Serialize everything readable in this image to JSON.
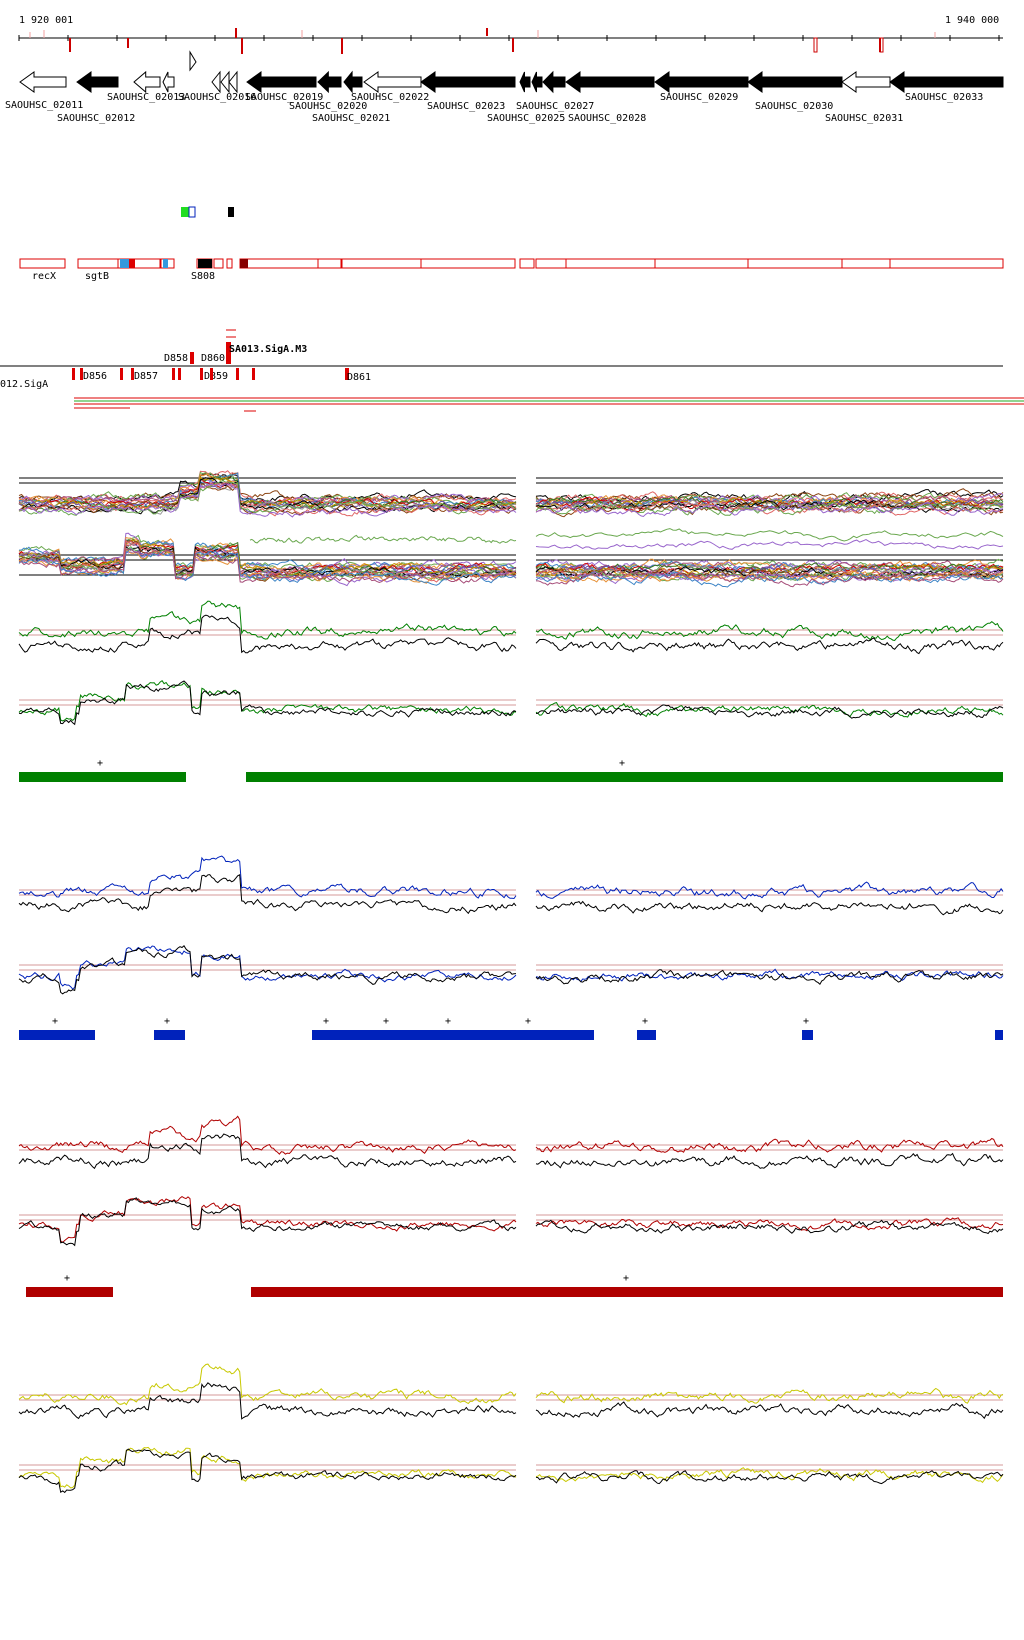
{
  "coordinate_axis": {
    "start_label": "1 920 001",
    "end_label": "1 940 000"
  },
  "genes": [
    {
      "name": "SAOUHSC_02011",
      "strand": "-",
      "style": "open"
    },
    {
      "name": "SAOUHSC_02012",
      "strand": "-",
      "style": "filled"
    },
    {
      "name": "SAOUHSC_02013",
      "strand": "-",
      "style": "open"
    },
    {
      "name": "SAOUHSC_02016",
      "strand": "-",
      "style": "open"
    },
    {
      "name": "SAOUHSC_02019",
      "strand": "-",
      "style": "filled"
    },
    {
      "name": "SAOUHSC_02020",
      "strand": "-",
      "style": "filled"
    },
    {
      "name": "SAOUHSC_02021",
      "strand": "-",
      "style": "filled"
    },
    {
      "name": "SAOUHSC_02022",
      "strand": "-",
      "style": "open"
    },
    {
      "name": "SAOUHSC_02023",
      "strand": "-",
      "style": "filled"
    },
    {
      "name": "SAOUHSC_02025",
      "strand": "-",
      "style": "filled"
    },
    {
      "name": "SAOUHSC_02027",
      "strand": "-",
      "style": "filled"
    },
    {
      "name": "SAOUHSC_02028",
      "strand": "-",
      "style": "filled"
    },
    {
      "name": "SAOUHSC_02029",
      "strand": "-",
      "style": "filled"
    },
    {
      "name": "SAOUHSC_02030",
      "strand": "-",
      "style": "filled"
    },
    {
      "name": "SAOUHSC_02031",
      "strand": "-",
      "style": "open"
    },
    {
      "name": "SAOUHSC_02033",
      "strand": "-",
      "style": "filled"
    }
  ],
  "gene_labels": [
    "recX",
    "sgtB",
    "S808"
  ],
  "feature_labels": [
    "D858",
    "D860",
    "D861",
    "D856",
    "D857",
    "D859"
  ],
  "sigma_labels": {
    "upper": "SA013.SigA.M3",
    "lower": "012.SigA"
  },
  "tracks": [
    {
      "name": "green-expression",
      "color": "#008000",
      "segment_marker": "+"
    },
    {
      "name": "blue-expression",
      "color": "#0022bb",
      "segment_marker": "+"
    },
    {
      "name": "red-expression",
      "color": "#b00000",
      "segment_marker": "+"
    },
    {
      "name": "yellow-expression",
      "color": "#c8c800"
    }
  ],
  "colors": {
    "feature_red": "#dd0000",
    "green": "#008000",
    "blue": "#0022bb",
    "red": "#b00000",
    "yellow": "#c8c800"
  }
}
